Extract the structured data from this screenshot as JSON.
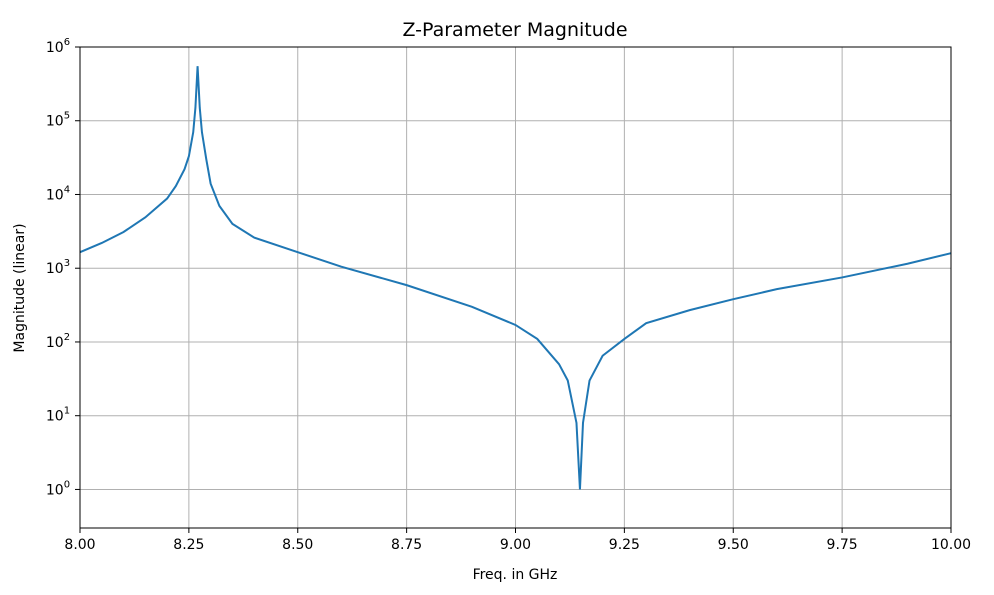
{
  "chart_data": {
    "type": "line",
    "title": "Z-Parameter Magnitude",
    "xlabel": "Freq. in GHz",
    "ylabel": "Magnitude (linear)",
    "xlim": [
      8.0,
      10.0
    ],
    "ylim": [
      0.3,
      1000000
    ],
    "yscale": "log",
    "grid": true,
    "xticks": [
      "8.00",
      "8.25",
      "8.50",
      "8.75",
      "9.00",
      "9.25",
      "9.50",
      "9.75",
      "10.00"
    ],
    "yticks": [
      {
        "base": "10",
        "exp": "0"
      },
      {
        "base": "10",
        "exp": "1"
      },
      {
        "base": "10",
        "exp": "2"
      },
      {
        "base": "10",
        "exp": "3"
      },
      {
        "base": "10",
        "exp": "4"
      },
      {
        "base": "10",
        "exp": "5"
      },
      {
        "base": "10",
        "exp": "6"
      }
    ],
    "series": [
      {
        "color": "#1f77b4",
        "x": [
          8.0,
          8.05,
          8.1,
          8.15,
          8.2,
          8.22,
          8.24,
          8.25,
          8.26,
          8.265,
          8.27,
          8.275,
          8.28,
          8.29,
          8.3,
          8.32,
          8.35,
          8.4,
          8.5,
          8.6,
          8.75,
          8.9,
          9.0,
          9.05,
          9.1,
          9.12,
          9.14,
          9.148,
          9.155,
          9.17,
          9.2,
          9.25,
          9.3,
          9.4,
          9.5,
          9.6,
          9.75,
          9.9,
          10.0
        ],
        "y": [
          1650,
          2200,
          3100,
          4900,
          8800,
          13000,
          22000,
          33000,
          70000,
          150000,
          550000,
          150000,
          70000,
          30000,
          14000,
          7000,
          4000,
          2600,
          1650,
          1050,
          590,
          300,
          170,
          110,
          50,
          30,
          8,
          1,
          8,
          30,
          65,
          110,
          180,
          270,
          380,
          520,
          750,
          1150,
          1600
        ]
      }
    ]
  }
}
